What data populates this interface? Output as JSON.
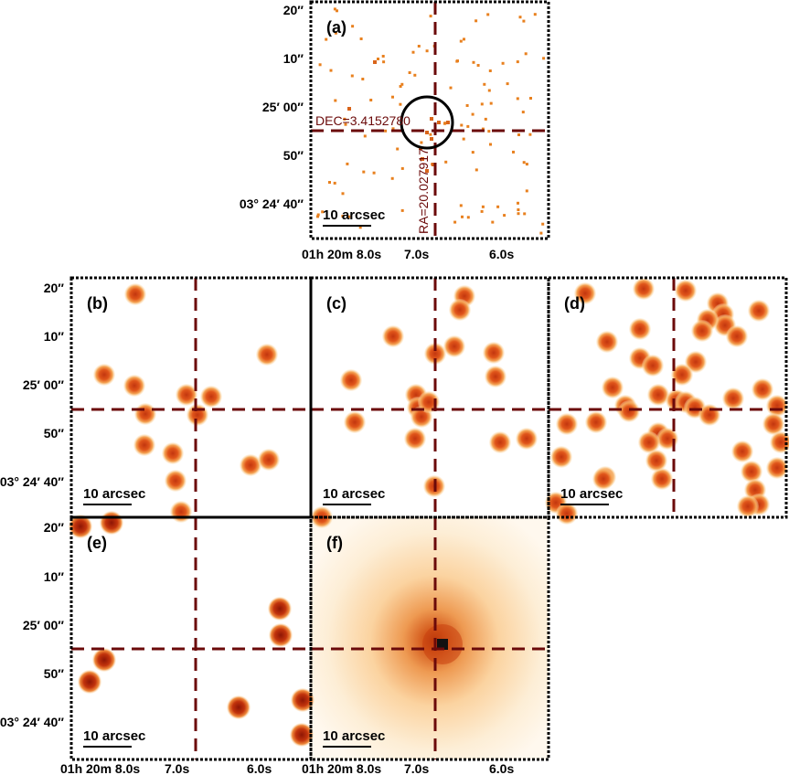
{
  "panel_labels": [
    "(a)",
    "(b)",
    "(c)",
    "(d)",
    "(e)",
    "(f)"
  ],
  "scale_bar_label": "10 arcsec",
  "dec_label": "DEC=3.4152780",
  "ra_label": "RA=20.027917",
  "y_ticks": {
    "t20": "20″",
    "t10": "10″",
    "t00": "25′ 00″",
    "t50": "50″",
    "t40": "03° 24′ 40″"
  },
  "x_ticks": {
    "t80": "01h 20m 8.0s",
    "t70": "7.0s",
    "t60": "6.0s"
  },
  "colors": {
    "crosshair": "#6b0a0a",
    "source_core": "#c0300e",
    "source_halo": "#fde0b0",
    "pixel": "#e8801e",
    "frame": "#000000"
  }
}
